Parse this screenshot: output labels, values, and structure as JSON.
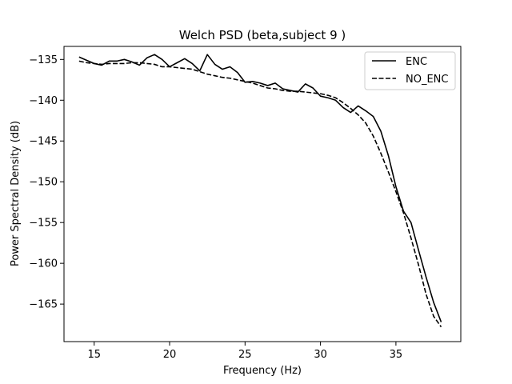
{
  "chart_data": {
    "type": "line",
    "title": "Welch PSD (beta,subject 9 )",
    "xlabel": "Frequency (Hz)",
    "ylabel": "Power Spectral Density (dB)",
    "xlim": [
      13.0,
      39.3
    ],
    "ylim": [
      -169.6,
      -133.4
    ],
    "xticks": [
      15,
      20,
      25,
      30,
      35
    ],
    "yticks": [
      -135,
      -140,
      -145,
      -150,
      -155,
      -160,
      -165
    ],
    "xtick_labels": [
      "15",
      "20",
      "25",
      "30",
      "35"
    ],
    "ytick_labels": [
      "−135",
      "−140",
      "−145",
      "−150",
      "−155",
      "−160",
      "−165"
    ],
    "grid": false,
    "legend_position": "top-right",
    "series": [
      {
        "name": "ENC",
        "style": "solid",
        "color": "#000000",
        "x": [
          14.0,
          14.5,
          15.0,
          15.5,
          16.0,
          16.5,
          17.0,
          17.5,
          18.0,
          18.5,
          19.0,
          19.5,
          20.0,
          20.5,
          21.0,
          21.5,
          22.0,
          22.5,
          23.0,
          23.5,
          24.0,
          24.5,
          25.0,
          25.5,
          26.0,
          26.5,
          27.0,
          27.5,
          28.0,
          28.5,
          29.0,
          29.5,
          30.0,
          30.5,
          31.0,
          31.5,
          32.0,
          32.5,
          33.0,
          33.5,
          34.0,
          34.5,
          35.0,
          35.5,
          36.0,
          36.5,
          37.0,
          37.5,
          38.0
        ],
        "y": [
          -134.7,
          -135.1,
          -135.5,
          -135.7,
          -135.2,
          -135.2,
          -135.0,
          -135.3,
          -135.7,
          -134.8,
          -134.4,
          -135.0,
          -135.9,
          -135.4,
          -134.9,
          -135.5,
          -136.4,
          -134.4,
          -135.6,
          -136.2,
          -135.9,
          -136.6,
          -137.8,
          -137.7,
          -137.9,
          -138.2,
          -137.9,
          -138.6,
          -138.8,
          -139.0,
          -138.0,
          -138.5,
          -139.5,
          -139.7,
          -140.0,
          -140.9,
          -141.5,
          -140.7,
          -141.3,
          -142.0,
          -143.8,
          -146.8,
          -150.6,
          -153.6,
          -155.0,
          -158.4,
          -161.7,
          -164.8,
          -167.2
        ]
      },
      {
        "name": "NO_ENC",
        "style": "dashed",
        "color": "#000000",
        "x": [
          14.0,
          14.5,
          15.0,
          15.5,
          16.0,
          16.5,
          17.0,
          17.5,
          18.0,
          18.5,
          19.0,
          19.5,
          20.0,
          20.5,
          21.0,
          21.5,
          22.0,
          22.5,
          23.0,
          23.5,
          24.0,
          24.5,
          25.0,
          25.5,
          26.0,
          26.5,
          27.0,
          27.5,
          28.0,
          28.5,
          29.0,
          29.5,
          30.0,
          30.5,
          31.0,
          31.5,
          32.0,
          32.5,
          33.0,
          33.5,
          34.0,
          34.5,
          35.0,
          35.5,
          36.0,
          36.5,
          37.0,
          37.5,
          38.0
        ],
        "y": [
          -135.2,
          -135.4,
          -135.5,
          -135.6,
          -135.5,
          -135.5,
          -135.5,
          -135.4,
          -135.4,
          -135.5,
          -135.6,
          -135.9,
          -135.9,
          -136.0,
          -136.1,
          -136.2,
          -136.5,
          -136.8,
          -137.0,
          -137.2,
          -137.3,
          -137.5,
          -137.7,
          -137.9,
          -138.2,
          -138.5,
          -138.6,
          -138.8,
          -138.9,
          -138.9,
          -139.0,
          -139.1,
          -139.2,
          -139.4,
          -139.7,
          -140.3,
          -141.0,
          -141.8,
          -142.8,
          -144.4,
          -146.5,
          -148.8,
          -151.2,
          -153.8,
          -156.9,
          -160.2,
          -163.8,
          -166.5,
          -167.8
        ]
      }
    ]
  }
}
